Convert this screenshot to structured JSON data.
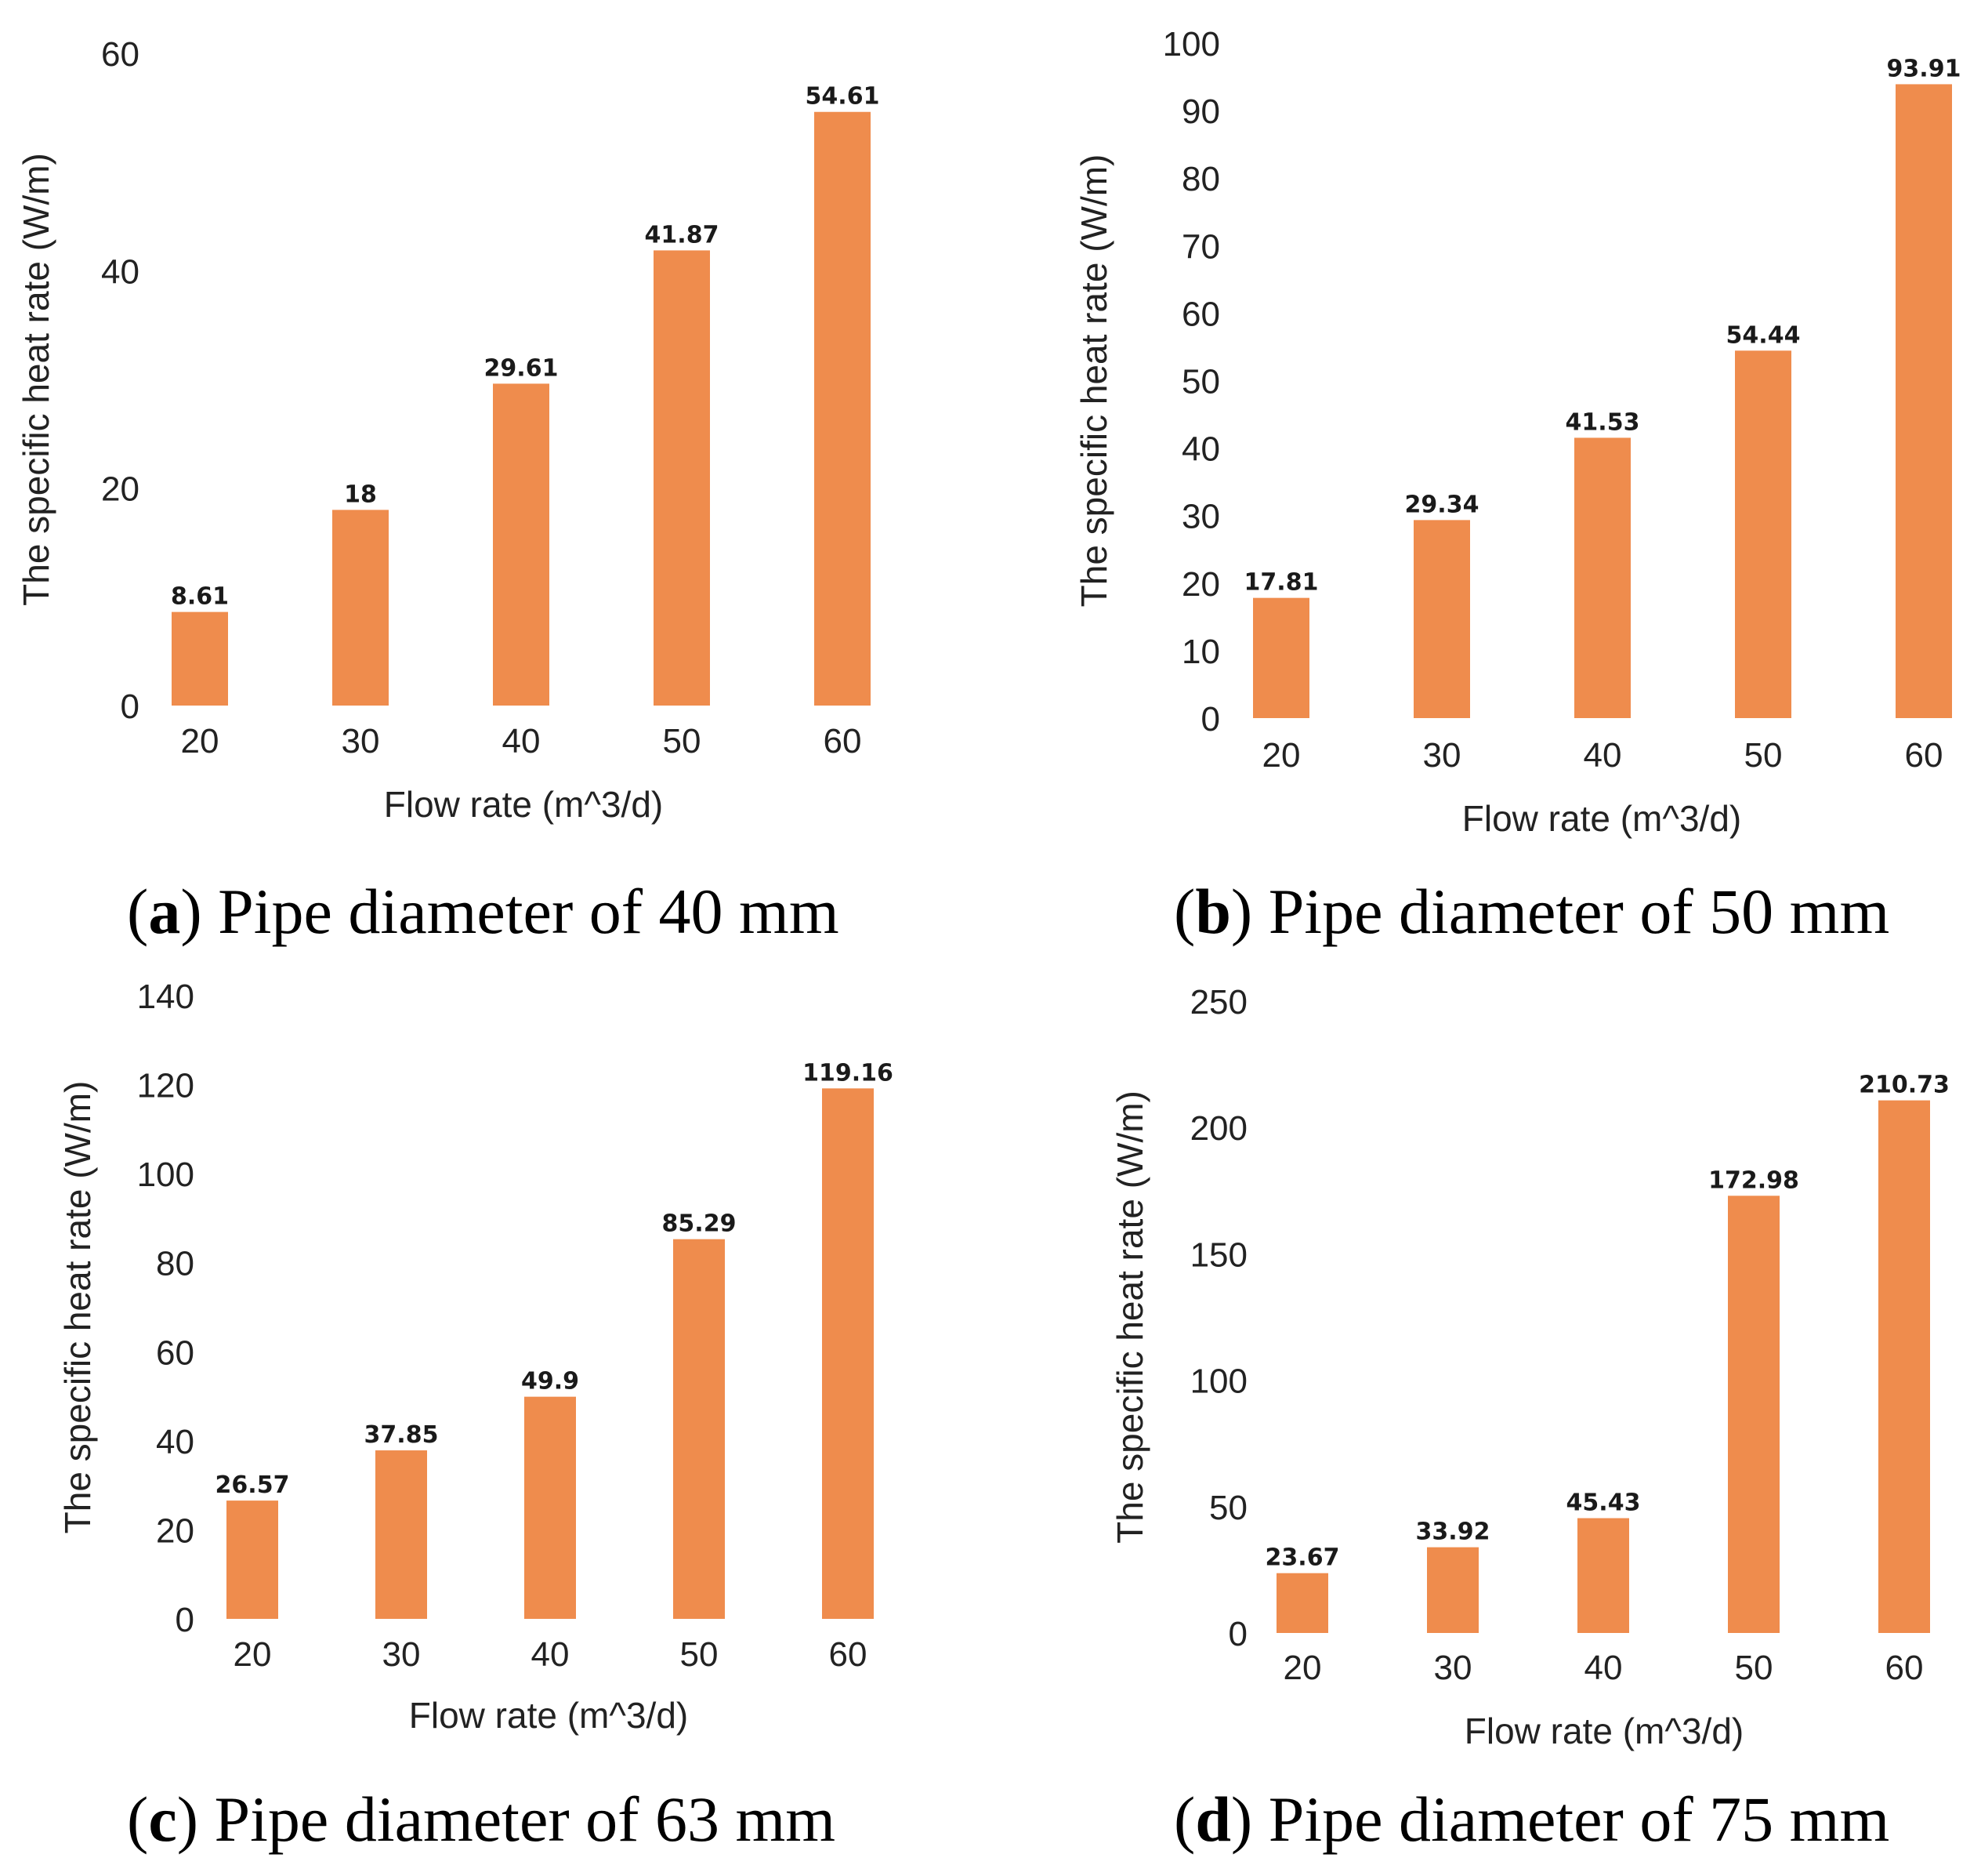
{
  "colors": {
    "bar": "#EF8C4D",
    "text": "#222222"
  },
  "captions": [
    {
      "letter": "a",
      "text": "Pipe diameter of 40 mm"
    },
    {
      "letter": "b",
      "text": "Pipe diameter of 50 mm"
    },
    {
      "letter": "c",
      "text": "Pipe diameter of 63 mm"
    },
    {
      "letter": "d",
      "text": "Pipe diameter of 75 mm"
    }
  ],
  "chart_data": [
    {
      "type": "bar",
      "xlabel": "Flow rate (m^3/d)",
      "ylabel": "The specific heat rate (W/m)",
      "categories": [
        "20",
        "30",
        "40",
        "50",
        "60"
      ],
      "values": [
        8.61,
        18,
        29.61,
        41.87,
        54.61
      ],
      "value_labels": [
        "8.61",
        "18",
        "29.61",
        "41.87",
        "54.61"
      ],
      "ylim": [
        0,
        60
      ],
      "yticks": [
        0,
        20,
        40,
        60
      ],
      "grid": false
    },
    {
      "type": "bar",
      "xlabel": "Flow rate (m^3/d)",
      "ylabel": "The specific heat rate (W/m)",
      "categories": [
        "20",
        "30",
        "40",
        "50",
        "60"
      ],
      "values": [
        17.81,
        29.34,
        41.53,
        54.44,
        93.91
      ],
      "value_labels": [
        "17.81",
        "29.34",
        "41.53",
        "54.44",
        "93.91"
      ],
      "ylim": [
        0,
        100
      ],
      "yticks": [
        0,
        10,
        20,
        30,
        40,
        50,
        60,
        70,
        80,
        90,
        100
      ],
      "grid": false
    },
    {
      "type": "bar",
      "xlabel": "Flow rate (m^3/d)",
      "ylabel": "The specific heat rate (W/m)",
      "categories": [
        "20",
        "30",
        "40",
        "50",
        "60"
      ],
      "values": [
        26.57,
        37.85,
        49.9,
        85.29,
        119.16
      ],
      "value_labels": [
        "26.57",
        "37.85",
        "49.9",
        "85.29",
        "119.16"
      ],
      "ylim": [
        0,
        140
      ],
      "yticks": [
        0,
        20,
        40,
        60,
        80,
        100,
        120,
        140
      ],
      "grid": false
    },
    {
      "type": "bar",
      "xlabel": "Flow rate (m^3/d)",
      "ylabel": "The specific heat rate (W/m)",
      "categories": [
        "20",
        "30",
        "40",
        "50",
        "60"
      ],
      "values": [
        23.67,
        33.92,
        45.43,
        172.98,
        210.73
      ],
      "value_labels": [
        "23.67",
        "33.92",
        "45.43",
        "172.98",
        "210.73"
      ],
      "ylim": [
        0,
        250
      ],
      "yticks": [
        0,
        50,
        100,
        150,
        200,
        250
      ],
      "grid": false
    }
  ]
}
